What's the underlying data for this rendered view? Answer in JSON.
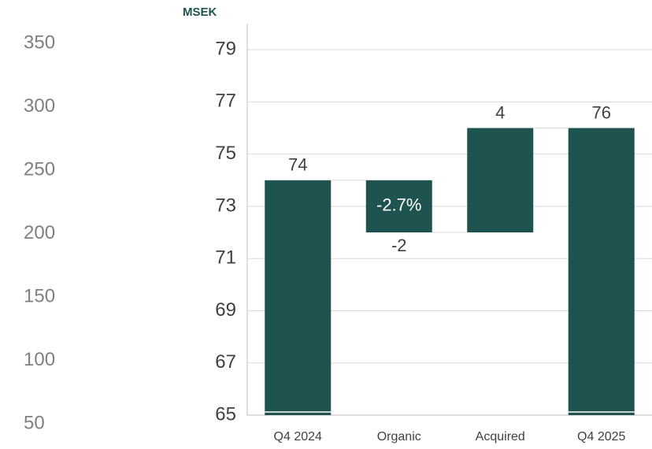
{
  "chart_data": {
    "type": "waterfall",
    "y_label": "MSEK",
    "categories": [
      "Q4 2024",
      "Organic",
      "Acquired",
      "Q4 2025"
    ],
    "values": [
      74,
      -2,
      4,
      76
    ],
    "measure": [
      "total",
      "relative",
      "relative",
      "total"
    ],
    "annotations": [
      {
        "category": 1,
        "text": "-2.7%"
      }
    ],
    "color": "#1f5350",
    "ylim": [
      65,
      80
    ],
    "yticks": [
      65,
      67,
      69,
      71,
      73,
      75,
      77,
      79
    ],
    "grid": true,
    "y2lim": [
      50,
      350
    ],
    "y2ticks": [
      50,
      100,
      150,
      200,
      250,
      300,
      350
    ]
  }
}
